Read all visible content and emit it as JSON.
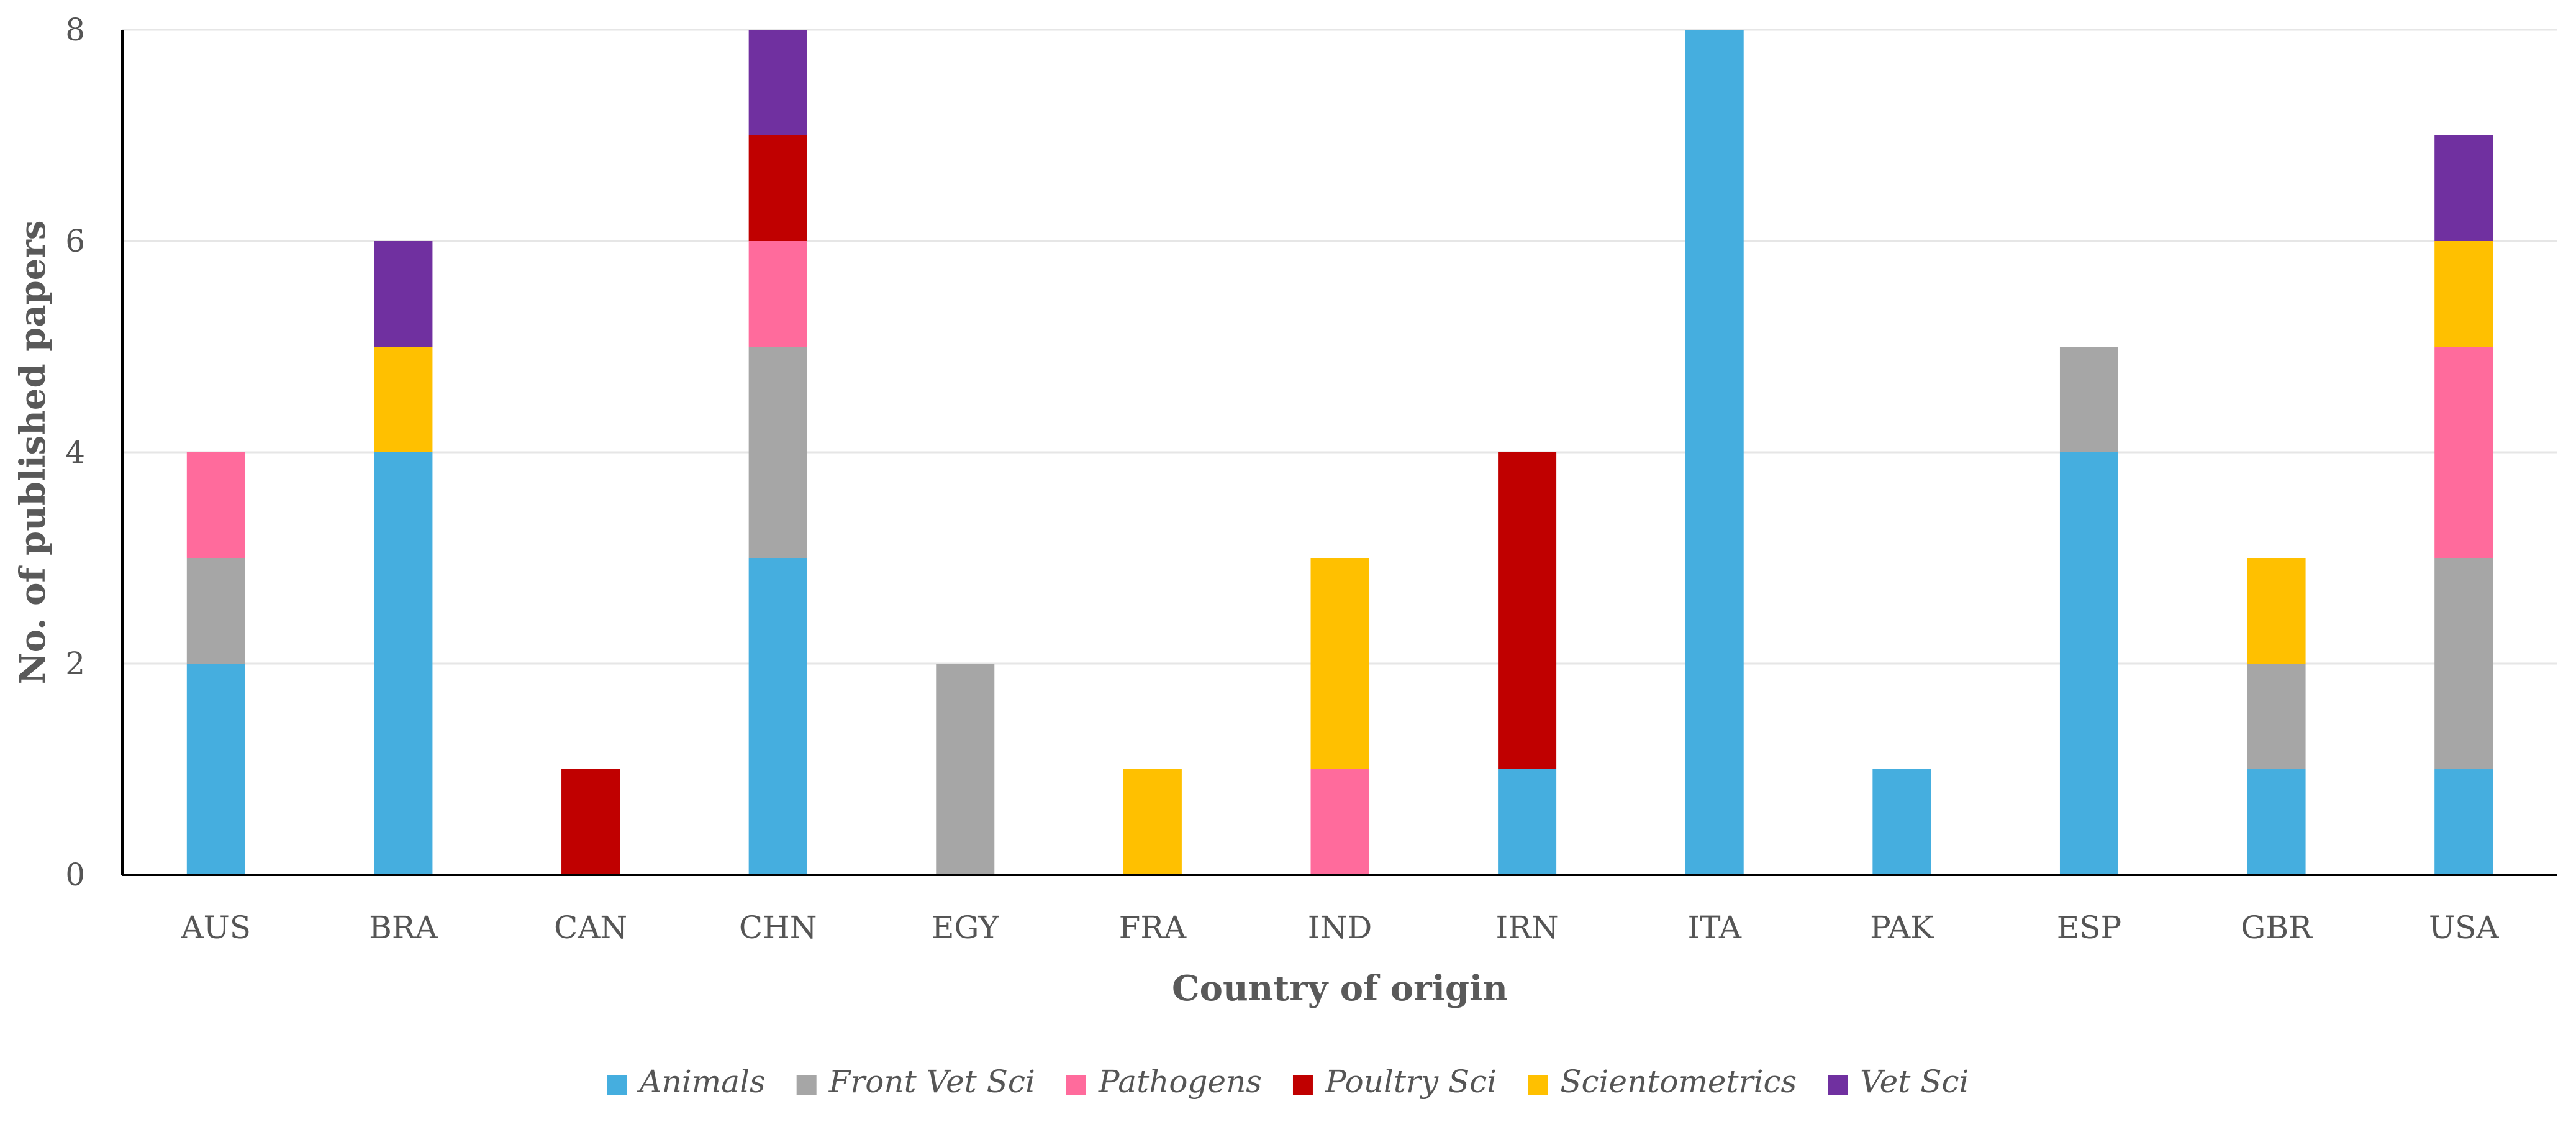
{
  "chart_data": {
    "type": "bar",
    "stacked": true,
    "title": "",
    "xlabel": "Country of origin",
    "ylabel": "No. of published papers",
    "ylim": [
      0,
      8
    ],
    "yticks": [
      0,
      2,
      4,
      6,
      8
    ],
    "grid": true,
    "legend_position": "bottom",
    "categories": [
      "AUS",
      "BRA",
      "CAN",
      "CHN",
      "EGY",
      "FRA",
      "IND",
      "IRN",
      "ITA",
      "PAK",
      "ESP",
      "GBR",
      "USA"
    ],
    "series": [
      {
        "name": "Animals",
        "color": "#45AEDF",
        "values": [
          2,
          4,
          0,
          3,
          0,
          0,
          0,
          1,
          8,
          1,
          4,
          1,
          1
        ]
      },
      {
        "name": "Front Vet Sci",
        "color": "#A6A6A6",
        "values": [
          1,
          0,
          0,
          2,
          2,
          0,
          0,
          0,
          0,
          0,
          1,
          1,
          2
        ]
      },
      {
        "name": "Pathogens",
        "color": "#FF6B9C",
        "values": [
          1,
          0,
          0,
          1,
          0,
          0,
          1,
          0,
          0,
          0,
          0,
          0,
          2
        ]
      },
      {
        "name": "Poultry Sci",
        "color": "#C00000",
        "values": [
          0,
          0,
          1,
          1,
          0,
          0,
          0,
          3,
          0,
          0,
          0,
          0,
          0
        ]
      },
      {
        "name": "Scientometrics",
        "color": "#FFC000",
        "values": [
          0,
          1,
          0,
          0,
          0,
          1,
          2,
          0,
          0,
          0,
          0,
          1,
          1
        ]
      },
      {
        "name": "Vet Sci",
        "color": "#7030A0",
        "values": [
          0,
          1,
          0,
          1,
          0,
          0,
          0,
          0,
          0,
          0,
          0,
          0,
          1
        ]
      }
    ]
  }
}
